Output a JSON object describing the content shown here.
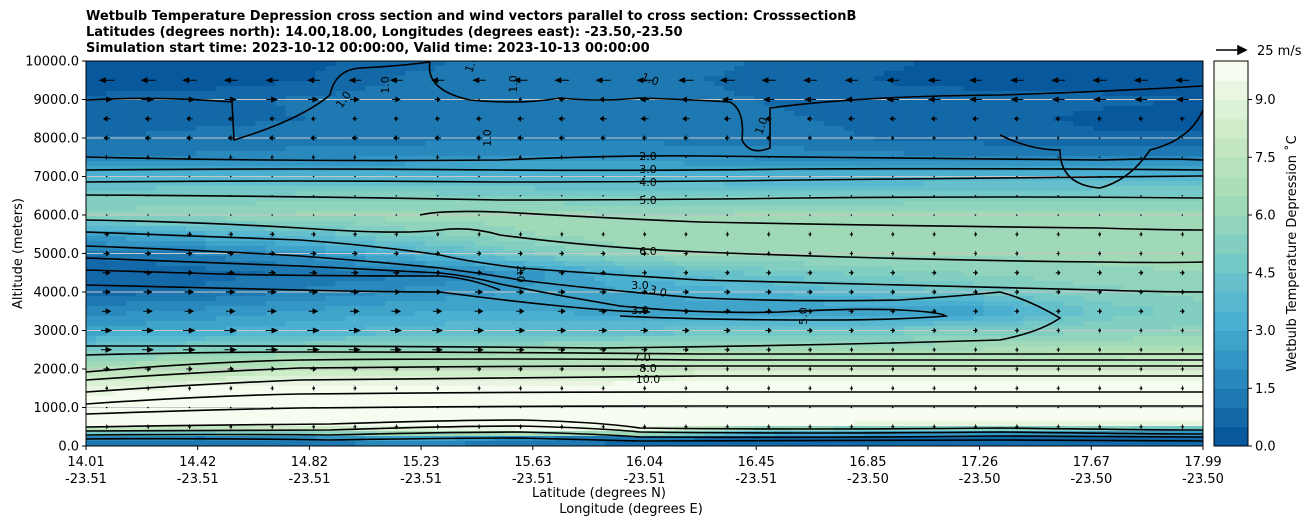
{
  "chart_data": {
    "type": "heatmap",
    "title_lines": [
      "Wetbulb Temperature Depression cross section and wind vectors parallel to cross section: CrosssectionB",
      "Latitudes (degrees north): 14.00,18.00, Longitudes (degrees east): -23.50,-23.50",
      "Simulation start time: 2023-10-12 00:00:00, Valid time: 2023-10-13 00:00:00"
    ],
    "ylabel": "Altitude (meters)",
    "xlabel_lat": "Latitude (degrees N)",
    "xlabel_lon": "Longitude (degrees E)",
    "ylim": [
      0,
      10000
    ],
    "yticks": [
      "0.0",
      "1000.0",
      "2000.0",
      "3000.0",
      "4000.0",
      "5000.0",
      "6000.0",
      "7000.0",
      "8000.0",
      "9000.0",
      "10000.0"
    ],
    "xticks": [
      {
        "lat": "14.01",
        "lon": "-23.51"
      },
      {
        "lat": "14.42",
        "lon": "-23.51"
      },
      {
        "lat": "14.82",
        "lon": "-23.51"
      },
      {
        "lat": "15.23",
        "lon": "-23.51"
      },
      {
        "lat": "15.63",
        "lon": "-23.51"
      },
      {
        "lat": "16.04",
        "lon": "-23.51"
      },
      {
        "lat": "16.45",
        "lon": "-23.51"
      },
      {
        "lat": "16.85",
        "lon": "-23.50"
      },
      {
        "lat": "17.26",
        "lon": "-23.50"
      },
      {
        "lat": "17.67",
        "lon": "-23.50"
      },
      {
        "lat": "17.99",
        "lon": "-23.50"
      }
    ],
    "grid": "horizontal",
    "colorbar": {
      "label": "Wetbulb Temperature Depression ˚C",
      "ticks": [
        "0.0",
        "1.5",
        "3.0",
        "4.5",
        "6.0",
        "7.5",
        "9.0"
      ],
      "range": [
        0,
        10
      ],
      "colormap": [
        "#08589e",
        "#2b8cbe",
        "#4eb3d3",
        "#7bccc4",
        "#a8ddb5",
        "#ccebc5",
        "#f7fcf0"
      ]
    },
    "quiver_key": {
      "label": "25 m/s"
    },
    "contour_labels": [
      "2.0",
      "3.0",
      "4.0",
      "5.0",
      "6.0",
      "3.0",
      "3.0",
      "7.0",
      "8.0",
      "10.0",
      "1.0",
      "1.0",
      "1.0",
      "1.0",
      "1.0",
      "1.0",
      "1.0",
      "2.0",
      "3.0",
      "5.0"
    ],
    "field_rows": [
      {
        "alt": 10000,
        "v": [
          0.3,
          0.3,
          0.4,
          0.8,
          1.5,
          1.2,
          1.0,
          0.6,
          0.4,
          0.3,
          0.4
        ]
      },
      {
        "alt": 9500,
        "v": [
          0.2,
          0.2,
          0.5,
          1.2,
          1.4,
          1.1,
          0.9,
          0.5,
          0.3,
          0.3,
          0.2
        ]
      },
      {
        "alt": 9000,
        "v": [
          0.6,
          0.8,
          1.1,
          1.3,
          1.3,
          1.2,
          1.0,
          0.8,
          0.7,
          0.6,
          0.5
        ]
      },
      {
        "alt": 8500,
        "v": [
          0.7,
          0.9,
          1.0,
          1.2,
          1.3,
          1.3,
          1.1,
          0.9,
          0.7,
          0.4,
          0.3
        ]
      },
      {
        "alt": 8000,
        "v": [
          1.0,
          1.1,
          1.2,
          1.3,
          1.3,
          1.3,
          1.2,
          1.0,
          0.8,
          0.6,
          0.6
        ]
      },
      {
        "alt": 7500,
        "v": [
          1.4,
          1.6,
          1.8,
          2.0,
          2.1,
          2.1,
          1.9,
          1.7,
          1.5,
          1.5,
          1.4
        ]
      },
      {
        "alt": 7000,
        "v": [
          3.5,
          3.6,
          3.6,
          3.6,
          3.5,
          3.5,
          3.4,
          3.4,
          3.4,
          3.5,
          3.5
        ]
      },
      {
        "alt": 6500,
        "v": [
          5.0,
          5.1,
          5.2,
          5.2,
          5.1,
          5.0,
          5.0,
          5.0,
          5.1,
          5.1,
          5.2
        ]
      },
      {
        "alt": 6000,
        "v": [
          5.6,
          5.9,
          6.1,
          6.3,
          6.2,
          6.0,
          6.1,
          6.2,
          6.2,
          6.2,
          6.1
        ]
      },
      {
        "alt": 5500,
        "v": [
          2.6,
          3.3,
          4.2,
          5.3,
          6.0,
          6.3,
          6.3,
          6.3,
          6.2,
          6.2,
          6.2
        ]
      },
      {
        "alt": 5000,
        "v": [
          1.1,
          1.5,
          2.3,
          3.6,
          5.0,
          6.0,
          6.2,
          6.2,
          6.1,
          6.1,
          6.2
        ]
      },
      {
        "alt": 4500,
        "v": [
          0.5,
          0.8,
          1.1,
          1.4,
          2.3,
          3.8,
          4.6,
          5.2,
          5.6,
          5.9,
          6.0
        ]
      },
      {
        "alt": 4000,
        "v": [
          0.8,
          1.1,
          1.6,
          2.2,
          2.6,
          3.0,
          3.4,
          4.0,
          4.6,
          5.3,
          5.7
        ]
      },
      {
        "alt": 3500,
        "v": [
          1.8,
          2.1,
          2.6,
          2.9,
          2.9,
          2.8,
          2.6,
          2.4,
          2.6,
          4.6,
          5.2
        ]
      },
      {
        "alt": 3000,
        "v": [
          2.6,
          3.0,
          3.4,
          3.8,
          4.0,
          4.1,
          4.3,
          4.6,
          5.0,
          5.4,
          5.6
        ]
      },
      {
        "alt": 2500,
        "v": [
          4.6,
          5.3,
          5.8,
          6.1,
          6.2,
          6.3,
          6.4,
          6.5,
          6.6,
          6.7,
          6.8
        ]
      },
      {
        "alt": 2000,
        "v": [
          7.0,
          7.3,
          7.6,
          7.8,
          7.9,
          8.0,
          8.1,
          8.2,
          8.3,
          8.4,
          8.5
        ]
      },
      {
        "alt": 1500,
        "v": [
          9.2,
          9.6,
          9.9,
          10,
          10,
          10,
          10,
          10,
          10,
          10,
          10
        ]
      },
      {
        "alt": 1000,
        "v": [
          10,
          10,
          10,
          10,
          10,
          10,
          10,
          10,
          10,
          10,
          10
        ]
      },
      {
        "alt": 600,
        "v": [
          10,
          10,
          10,
          10,
          10,
          10,
          10,
          10,
          10,
          10,
          10
        ]
      },
      {
        "alt": 400,
        "v": [
          6.5,
          7.0,
          7.5,
          8.5,
          9.5,
          9.0,
          4.5,
          3.5,
          3.2,
          3.2,
          3.0
        ]
      },
      {
        "alt": 200,
        "v": [
          1.8,
          1.5,
          2.0,
          3.0,
          1.6,
          1.2,
          0.8,
          0.8,
          0.8,
          0.8,
          0.8
        ]
      },
      {
        "alt": 0,
        "v": [
          0.8,
          0.8,
          1.0,
          1.2,
          0.9,
          0.8,
          0.7,
          0.7,
          0.7,
          0.7,
          0.7
        ]
      }
    ],
    "wind_rows": [
      {
        "alt": 9500,
        "u": [
          -10,
          -9,
          -8,
          -8,
          -9,
          -10,
          -9,
          -8,
          -8,
          -9,
          -9
        ]
      },
      {
        "alt": 9000,
        "u": [
          8,
          8,
          7,
          5,
          -3,
          -6,
          -7,
          -8,
          -8,
          -8,
          -8
        ]
      },
      {
        "alt": 8500,
        "u": [
          -5,
          -4,
          -3,
          -3,
          -4,
          -5,
          -4,
          -4,
          -4,
          -3,
          -3
        ]
      },
      {
        "alt": 8000,
        "u": [
          -4,
          -4,
          -4,
          -4,
          -4,
          -3,
          -3,
          -2,
          -2,
          -1,
          -1
        ]
      },
      {
        "alt": 7500,
        "u": [
          -2,
          -2,
          -2,
          -2,
          -2,
          -1,
          -1,
          -1,
          -1,
          -1,
          -1
        ]
      },
      {
        "alt": 7000,
        "u": [
          -1,
          -1,
          -1,
          -1,
          -1,
          -1,
          -1,
          0,
          0,
          0,
          0
        ]
      },
      {
        "alt": 6500,
        "u": [
          0,
          0,
          0,
          0,
          0,
          0,
          0,
          0,
          0,
          0,
          0
        ]
      },
      {
        "alt": 6000,
        "u": [
          1,
          1,
          1,
          1,
          1,
          1,
          1,
          1,
          1,
          1,
          1
        ]
      },
      {
        "alt": 5500,
        "u": [
          3,
          3,
          3,
          2,
          2,
          2,
          2,
          2,
          2,
          2,
          2
        ]
      },
      {
        "alt": 5000,
        "u": [
          4,
          4,
          4,
          3,
          3,
          3,
          2,
          2,
          2,
          2,
          2
        ]
      },
      {
        "alt": 4500,
        "u": [
          5,
          5,
          5,
          4,
          4,
          3,
          3,
          3,
          3,
          3,
          3
        ]
      },
      {
        "alt": 4000,
        "u": [
          5,
          6,
          6,
          5,
          5,
          4,
          4,
          3,
          3,
          3,
          3
        ]
      },
      {
        "alt": 3500,
        "u": [
          6,
          6,
          6,
          6,
          5,
          5,
          4,
          3,
          3,
          3,
          3
        ]
      },
      {
        "alt": 3000,
        "u": [
          7,
          8,
          8,
          7,
          6,
          5,
          4,
          3,
          3,
          2,
          2
        ]
      },
      {
        "alt": 2500,
        "u": [
          7,
          8,
          8,
          7,
          5,
          4,
          3,
          2,
          2,
          2,
          2
        ]
      },
      {
        "alt": 2000,
        "u": [
          4,
          4,
          4,
          3,
          3,
          2,
          2,
          2,
          2,
          2,
          2
        ]
      },
      {
        "alt": 1500,
        "u": [
          2,
          2,
          2,
          2,
          2,
          2,
          2,
          2,
          2,
          2,
          2
        ]
      },
      {
        "alt": 1000,
        "u": [
          1,
          1,
          1,
          1,
          1,
          1,
          1,
          1,
          1,
          1,
          1
        ]
      },
      {
        "alt": 500,
        "u": [
          2,
          2,
          2,
          2,
          2,
          2,
          2,
          2,
          2,
          2,
          2
        ]
      }
    ]
  }
}
